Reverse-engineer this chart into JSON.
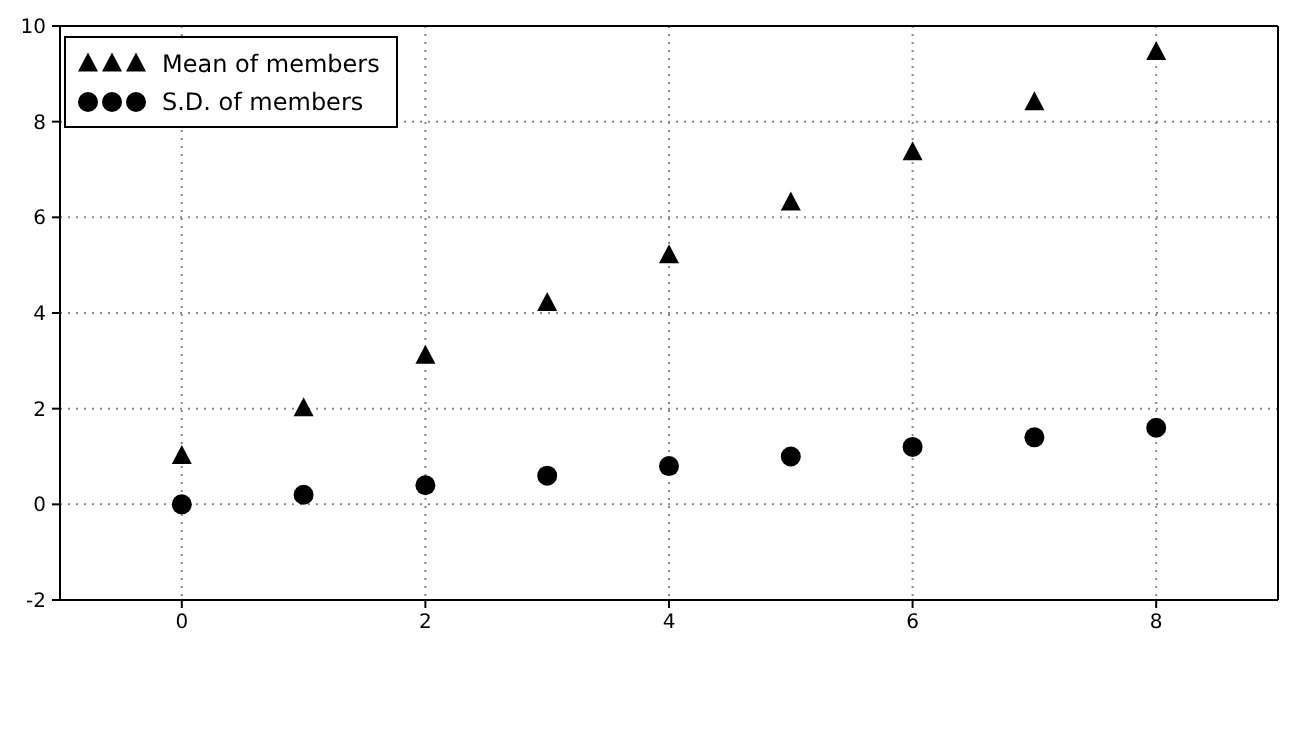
{
  "chart_data": {
    "type": "scatter",
    "x": [
      0,
      1,
      2,
      3,
      4,
      5,
      6,
      7,
      8
    ],
    "series": [
      {
        "name": "Mean of members",
        "color": "#000000",
        "marker": "triangle",
        "values": [
          1.0,
          2.0,
          3.1,
          4.2,
          5.2,
          6.3,
          7.35,
          8.4,
          9.45
        ]
      },
      {
        "name": "S.D. of members",
        "color": "#000000",
        "marker": "circle",
        "values": [
          0,
          0.2,
          0.4,
          0.6,
          0.8,
          1.0,
          1.2,
          1.4,
          1.6
        ]
      }
    ],
    "xlim": [
      -1,
      9
    ],
    "xticks": [
      0,
      2,
      4,
      6,
      8
    ],
    "ylim": [
      -2,
      10
    ],
    "yticks": [
      -2,
      0,
      2,
      4,
      6,
      8,
      10
    ],
    "grid": true,
    "legend": "top left"
  }
}
